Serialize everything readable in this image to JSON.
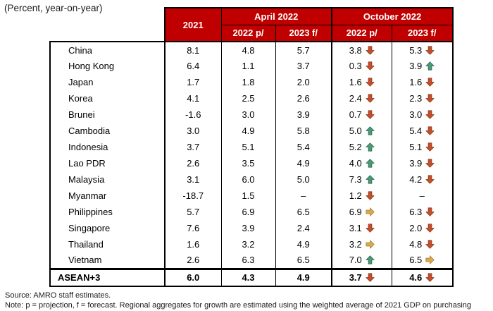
{
  "subtitle": "(Percent, year-on-year)",
  "colors": {
    "header_red": "#C00000",
    "arrow_up_fill": "#4E9878",
    "arrow_up_stroke": "#2F6B52",
    "arrow_down_fill": "#C44F2C",
    "arrow_down_stroke": "#8F3A1E",
    "arrow_right_fill": "#DBAA4F",
    "arrow_right_stroke": "#A97F33"
  },
  "table": {
    "header": {
      "col_2021": "2021",
      "group_april": "April 2022",
      "group_october": "October 2022",
      "sub_april_2022": "2022 p/",
      "sub_april_2023": "2023 f/",
      "sub_october_2022": "2022 p/",
      "sub_october_2023": "2023 f/"
    },
    "rows": [
      {
        "country": "China",
        "y2021": "8.1",
        "apr_2022": "4.8",
        "apr_2023": "5.7",
        "oct_2022": {
          "value": "3.8",
          "arrow": "down"
        },
        "oct_2023": {
          "value": "5.3",
          "arrow": "down"
        }
      },
      {
        "country": "Hong Kong",
        "y2021": "6.4",
        "apr_2022": "1.1",
        "apr_2023": "3.7",
        "oct_2022": {
          "value": "0.3",
          "arrow": "down"
        },
        "oct_2023": {
          "value": "3.9",
          "arrow": "up"
        }
      },
      {
        "country": "Japan",
        "y2021": "1.7",
        "apr_2022": "1.8",
        "apr_2023": "2.0",
        "oct_2022": {
          "value": "1.6",
          "arrow": "down"
        },
        "oct_2023": {
          "value": "1.6",
          "arrow": "down"
        }
      },
      {
        "country": "Korea",
        "y2021": "4.1",
        "apr_2022": "2.5",
        "apr_2023": "2.6",
        "oct_2022": {
          "value": "2.4",
          "arrow": "down"
        },
        "oct_2023": {
          "value": "2.3",
          "arrow": "down"
        }
      },
      {
        "country": "Brunei",
        "y2021": "-1.6",
        "apr_2022": "3.0",
        "apr_2023": "3.9",
        "oct_2022": {
          "value": "0.7",
          "arrow": "down"
        },
        "oct_2023": {
          "value": "3.0",
          "arrow": "down"
        }
      },
      {
        "country": "Cambodia",
        "y2021": "3.0",
        "apr_2022": "4.9",
        "apr_2023": "5.8",
        "oct_2022": {
          "value": "5.0",
          "arrow": "up"
        },
        "oct_2023": {
          "value": "5.4",
          "arrow": "down"
        }
      },
      {
        "country": "Indonesia",
        "y2021": "3.7",
        "apr_2022": "5.1",
        "apr_2023": "5.4",
        "oct_2022": {
          "value": "5.2",
          "arrow": "up"
        },
        "oct_2023": {
          "value": "5.1",
          "arrow": "down"
        }
      },
      {
        "country": "Lao PDR",
        "y2021": "2.6",
        "apr_2022": "3.5",
        "apr_2023": "4.9",
        "oct_2022": {
          "value": "4.0",
          "arrow": "up"
        },
        "oct_2023": {
          "value": "3.9",
          "arrow": "down"
        }
      },
      {
        "country": "Malaysia",
        "y2021": "3.1",
        "apr_2022": "6.0",
        "apr_2023": "5.0",
        "oct_2022": {
          "value": "7.3",
          "arrow": "up"
        },
        "oct_2023": {
          "value": "4.2",
          "arrow": "down"
        }
      },
      {
        "country": "Myanmar",
        "y2021": "-18.7",
        "apr_2022": "1.5",
        "apr_2023": "–",
        "oct_2022": {
          "value": "1.2",
          "arrow": "down"
        },
        "oct_2023": {
          "value": "–",
          "arrow": ""
        }
      },
      {
        "country": "Philippines",
        "y2021": "5.7",
        "apr_2022": "6.9",
        "apr_2023": "6.5",
        "oct_2022": {
          "value": "6.9",
          "arrow": "right"
        },
        "oct_2023": {
          "value": "6.3",
          "arrow": "down"
        }
      },
      {
        "country": "Singapore",
        "y2021": "7.6",
        "apr_2022": "3.9",
        "apr_2023": "2.4",
        "oct_2022": {
          "value": "3.1",
          "arrow": "down"
        },
        "oct_2023": {
          "value": "2.0",
          "arrow": "down"
        }
      },
      {
        "country": "Thailand",
        "y2021": "1.6",
        "apr_2022": "3.2",
        "apr_2023": "4.9",
        "oct_2022": {
          "value": "3.2",
          "arrow": "right"
        },
        "oct_2023": {
          "value": "4.8",
          "arrow": "down"
        }
      },
      {
        "country": "Vietnam",
        "y2021": "2.6",
        "apr_2022": "6.3",
        "apr_2023": "6.5",
        "oct_2022": {
          "value": "7.0",
          "arrow": "up"
        },
        "oct_2023": {
          "value": "6.5",
          "arrow": "right"
        }
      }
    ],
    "total_row": {
      "country": "ASEAN+3",
      "y2021": "6.0",
      "apr_2022": "4.3",
      "apr_2023": "4.9",
      "oct_2022": {
        "value": "3.7",
        "arrow": "down"
      },
      "oct_2023": {
        "value": "4.6",
        "arrow": "down"
      }
    }
  },
  "footer": {
    "source": "Source: AMRO staff estimates.",
    "note": "Note: p = projection, f = forecast. Regional aggregates for growth are estimated using the weighted average of 2021 GDP on purchasing"
  }
}
